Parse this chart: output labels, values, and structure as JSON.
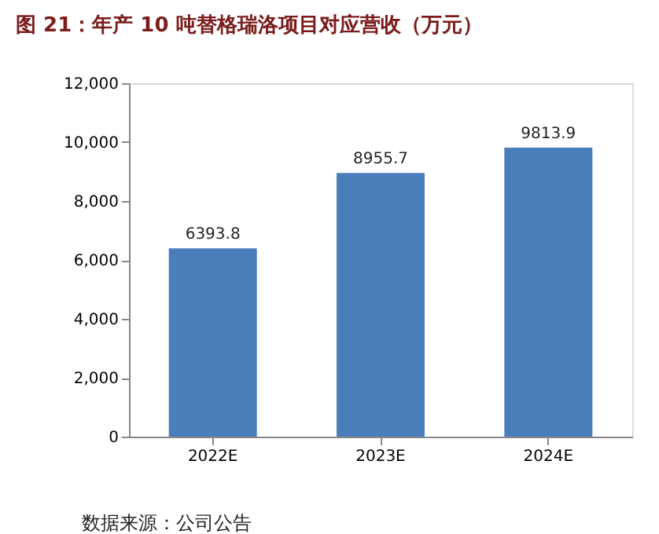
{
  "chart_data": {
    "type": "bar",
    "title": "图 21：年产 10 吨替格瑞洛项目对应营收（万元）",
    "categories": [
      "2022E",
      "2023E",
      "2024E"
    ],
    "values": [
      6393.8,
      8955.7,
      9813.9
    ],
    "color": "#4a7ebb",
    "ylim": [
      0,
      12000
    ],
    "yticks": [
      0,
      {
        "value": 2000,
        "label": "2,000"
      },
      {
        "value": 4000,
        "label": "4,000"
      },
      {
        "value": 6000,
        "label": "6,000"
      },
      {
        "value": 8000,
        "label": "8,000"
      },
      {
        "value": 10000,
        "label": "10,000"
      },
      {
        "value": 12000,
        "label": "12,000"
      }
    ],
    "grid": false,
    "data_labels": true,
    "annotations": [
      "数据来源：公司公告"
    ]
  }
}
